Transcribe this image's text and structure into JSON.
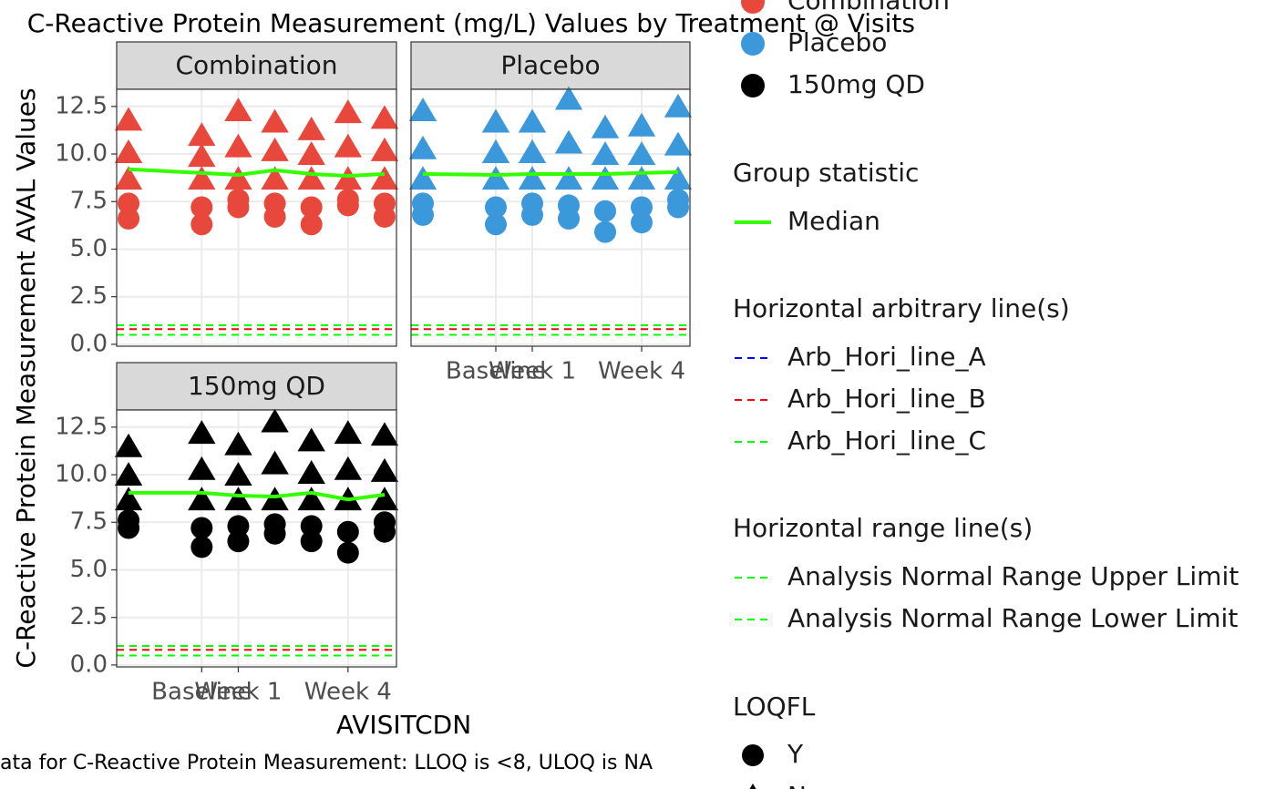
{
  "chart_data": {
    "type": "scatter",
    "title": "C-Reactive Protein Measurement (mg/L)  Values by Treatment @ Visits",
    "x_label": "AVISITCDN",
    "y_label": "C-Reactive Protein Measurement AVAL Values",
    "caption": "ata for C-Reactive Protein Measurement: LLOQ is <8, ULOQ is NA",
    "x": [
      -2,
      0,
      1,
      2,
      3,
      4,
      5
    ],
    "xlim": [
      -2.325,
      5.325
    ],
    "xticks": [
      {
        "value": 0,
        "label": "Baseline"
      },
      {
        "value": 1,
        "label": "Week 1"
      },
      {
        "value": 4,
        "label": "Week 4"
      }
    ],
    "ylim": [
      -0.1,
      13.4
    ],
    "yticks": [
      {
        "value": 0,
        "label": "0.0"
      },
      2.5,
      {
        "value": 5,
        "label": "5.0"
      },
      7.5,
      {
        "value": 10,
        "label": "10.0"
      },
      12.5
    ],
    "grid": true,
    "panels": [
      {
        "name": "Combination",
        "color": "#e8473b",
        "points": [
          [
            6.6,
            7.4,
            8.6,
            10.0,
            11.7
          ],
          [
            6.3,
            7.2,
            8.6,
            9.8,
            10.9
          ],
          [
            7.2,
            7.6,
            8.6,
            10.3,
            12.2
          ],
          [
            6.7,
            7.4,
            8.6,
            10.1,
            11.6
          ],
          [
            6.3,
            7.2,
            8.6,
            9.9,
            11.2
          ],
          [
            7.3,
            7.6,
            8.6,
            10.3,
            12.1
          ],
          [
            6.7,
            7.4,
            8.6,
            10.1,
            11.8
          ]
        ],
        "loqfl": [
          [
            "Y",
            "Y",
            "N",
            "N",
            "N"
          ],
          [
            "Y",
            "Y",
            "N",
            "N",
            "N"
          ],
          [
            "Y",
            "Y",
            "N",
            "N",
            "N"
          ],
          [
            "Y",
            "Y",
            "N",
            "N",
            "N"
          ],
          [
            "Y",
            "Y",
            "N",
            "N",
            "N"
          ],
          [
            "Y",
            "Y",
            "N",
            "N",
            "N"
          ],
          [
            "Y",
            "Y",
            "N",
            "N",
            "N"
          ]
        ],
        "median": [
          9.2,
          9.0,
          8.9,
          9.15,
          8.95,
          8.85,
          8.95
        ]
      },
      {
        "name": "Placebo",
        "color": "#3a98db",
        "points": [
          [
            6.8,
            7.4,
            8.6,
            10.2,
            12.2
          ],
          [
            6.3,
            7.2,
            8.6,
            10.0,
            11.6
          ],
          [
            6.8,
            7.4,
            8.6,
            10.0,
            11.6
          ],
          [
            6.6,
            7.3,
            8.6,
            10.5,
            12.8
          ],
          [
            5.9,
            7.0,
            8.6,
            9.9,
            11.3
          ],
          [
            6.4,
            7.2,
            8.6,
            9.9,
            11.4
          ],
          [
            7.2,
            7.6,
            8.6,
            10.4,
            12.4
          ]
        ],
        "loqfl": [
          [
            "Y",
            "Y",
            "N",
            "N",
            "N"
          ],
          [
            "Y",
            "Y",
            "N",
            "N",
            "N"
          ],
          [
            "Y",
            "Y",
            "N",
            "N",
            "N"
          ],
          [
            "Y",
            "Y",
            "N",
            "N",
            "N"
          ],
          [
            "Y",
            "Y",
            "N",
            "N",
            "N"
          ],
          [
            "Y",
            "Y",
            "N",
            "N",
            "N"
          ],
          [
            "Y",
            "Y",
            "N",
            "N",
            "N"
          ]
        ],
        "median": [
          8.95,
          8.9,
          8.95,
          8.95,
          8.95,
          9.0,
          9.05
        ]
      },
      {
        "name": "150mg QD",
        "color": "#000000",
        "points": [
          [
            7.2,
            7.6,
            8.6,
            9.9,
            11.4
          ],
          [
            6.2,
            7.2,
            8.6,
            10.2,
            12.1
          ],
          [
            6.5,
            7.3,
            8.6,
            9.9,
            11.5
          ],
          [
            6.9,
            7.4,
            8.6,
            10.5,
            12.7
          ],
          [
            6.5,
            7.3,
            8.6,
            10.0,
            11.7
          ],
          [
            5.9,
            7.0,
            8.6,
            10.2,
            12.1
          ],
          [
            7.0,
            7.5,
            8.6,
            10.1,
            12.0
          ]
        ],
        "loqfl": [
          [
            "Y",
            "Y",
            "N",
            "N",
            "N"
          ],
          [
            "Y",
            "Y",
            "N",
            "N",
            "N"
          ],
          [
            "Y",
            "Y",
            "N",
            "N",
            "N"
          ],
          [
            "Y",
            "Y",
            "N",
            "N",
            "N"
          ],
          [
            "Y",
            "Y",
            "N",
            "N",
            "N"
          ],
          [
            "Y",
            "Y",
            "N",
            "N",
            "N"
          ],
          [
            "Y",
            "Y",
            "N",
            "N",
            "N"
          ]
        ],
        "median": [
          9.05,
          9.05,
          8.9,
          8.85,
          9.05,
          8.7,
          8.95
        ]
      }
    ],
    "median_legend": {
      "title": "Group statistic",
      "name": "Median",
      "color": "#33ff00"
    },
    "arbitrary_lines": {
      "title": "Horizontal arbitrary line(s)",
      "lines": [
        {
          "name": "Arb_Hori_line_A",
          "value": 0.5,
          "color": "#0000ff"
        },
        {
          "name": "Arb_Hori_line_B",
          "value": 0.8,
          "color": "#ff0000"
        },
        {
          "name": "Arb_Hori_line_C",
          "value": 1.0,
          "color": "#00ff00"
        }
      ]
    },
    "range_lines": {
      "title": "Horizontal range line(s)",
      "lines": [
        {
          "name": "Analysis Normal Range Upper Limit",
          "value": 1.0,
          "color": "#00ff00"
        },
        {
          "name": "Analysis Normal Range Lower Limit",
          "value": 0.5,
          "color": "#00ff00"
        }
      ]
    },
    "loqfl_legend": {
      "title": "LOQFL",
      "levels": [
        {
          "name": "Y",
          "shape": "circle"
        },
        {
          "name": "N",
          "shape": "triangle"
        }
      ]
    }
  }
}
